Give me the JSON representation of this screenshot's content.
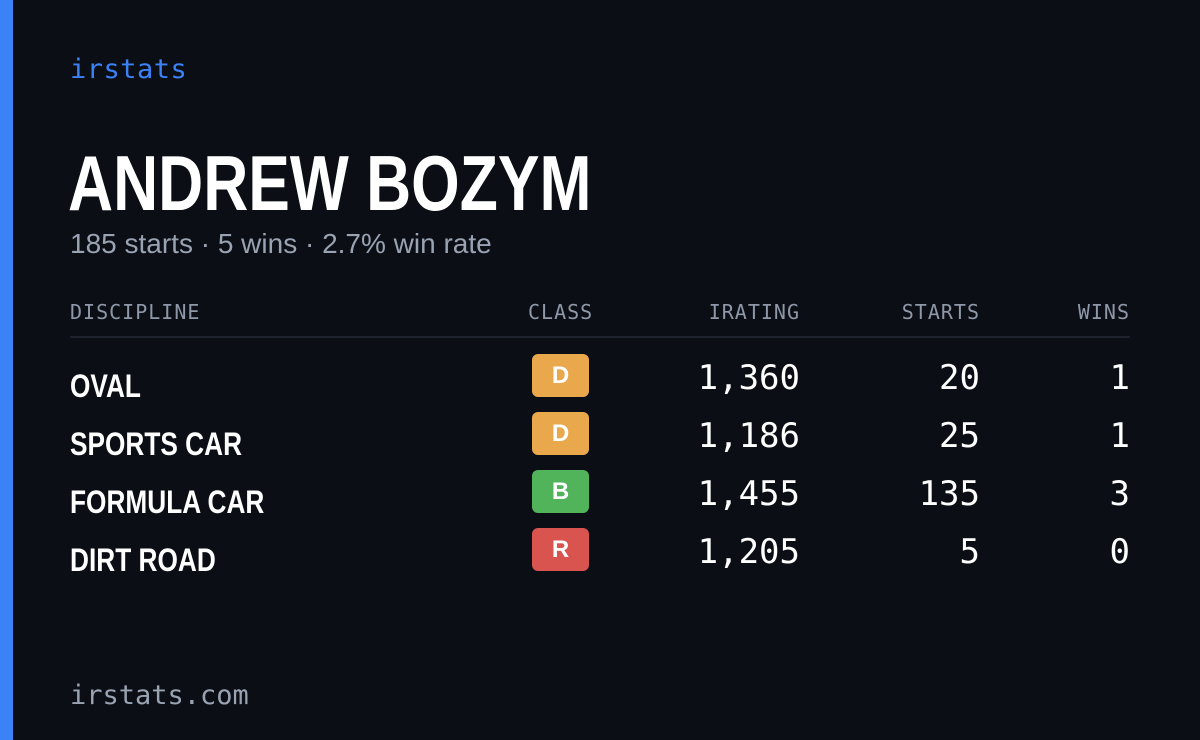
{
  "brand": "irstats",
  "driver": {
    "name": "ANDREW BOZYM",
    "summary": "185 starts · 5 wins · 2.7% win rate"
  },
  "colors": {
    "accent": "#3b82f6",
    "class_D": "#e9a84c",
    "class_B": "#52b45a",
    "class_R": "#d9534f"
  },
  "table": {
    "headers": {
      "discipline": "DISCIPLINE",
      "class": "CLASS",
      "irating": "IRATING",
      "starts": "STARTS",
      "wins": "WINS"
    },
    "rows": [
      {
        "discipline": "OVAL",
        "class": "D",
        "class_color": "#e9a84c",
        "irating": "1,360",
        "starts": "20",
        "wins": "1"
      },
      {
        "discipline": "SPORTS CAR",
        "class": "D",
        "class_color": "#e9a84c",
        "irating": "1,186",
        "starts": "25",
        "wins": "1"
      },
      {
        "discipline": "FORMULA CAR",
        "class": "B",
        "class_color": "#52b45a",
        "irating": "1,455",
        "starts": "135",
        "wins": "3"
      },
      {
        "discipline": "DIRT ROAD",
        "class": "R",
        "class_color": "#d9534f",
        "irating": "1,205",
        "starts": "5",
        "wins": "0"
      }
    ]
  },
  "footer": "irstats.com"
}
